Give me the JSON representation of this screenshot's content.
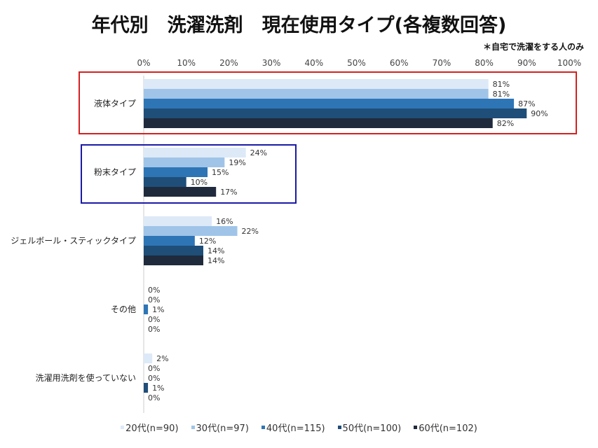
{
  "colors": [
    "#dde9f7",
    "#9fc4e8",
    "#2e75b6",
    "#1f4e79",
    "#1f2a3c"
  ],
  "highlight_colors": [
    "#d42020",
    "#1a1aa6"
  ],
  "chart_data": {
    "type": "bar",
    "orientation": "horizontal",
    "title": "年代別　洗濯洗剤　現在使用タイプ(各複数回答)",
    "note": "＊自宅で洗濯をする人のみ",
    "categories": [
      "液体タイプ",
      "粉末タイプ",
      "ジェルボール・スティックタイプ",
      "その他",
      "洗濯用洗剤を使っていない"
    ],
    "xlim": [
      0,
      100
    ],
    "xticks": [
      "0%",
      "10%",
      "20%",
      "30%",
      "40%",
      "50%",
      "60%",
      "70%",
      "80%",
      "90%",
      "100%"
    ],
    "grid": false,
    "legend_position": "bottom",
    "highlighted_categories": [
      "液体タイプ",
      "粉末タイプ"
    ],
    "series": [
      {
        "name": "20代(n=90)",
        "values": [
          81,
          24,
          16,
          0,
          2
        ],
        "labels": [
          "81%",
          "24%",
          "16%",
          "0%",
          "2%"
        ]
      },
      {
        "name": "30代(n=97)",
        "values": [
          81,
          19,
          22,
          0,
          0
        ],
        "labels": [
          "81%",
          "19%",
          "22%",
          "0%",
          "0%"
        ]
      },
      {
        "name": "40代(n=115)",
        "values": [
          87,
          15,
          12,
          1,
          0
        ],
        "labels": [
          "87%",
          "15%",
          "12%",
          "1%",
          "0%"
        ]
      },
      {
        "name": "50代(n=100)",
        "values": [
          90,
          10,
          14,
          0,
          1
        ],
        "labels": [
          "90%",
          "10%",
          "14%",
          "0%",
          "1%"
        ]
      },
      {
        "name": "60代(n=102)",
        "values": [
          82,
          17,
          14,
          0,
          0
        ],
        "labels": [
          "82%",
          "17%",
          "14%",
          "0%",
          "0%"
        ]
      }
    ]
  }
}
